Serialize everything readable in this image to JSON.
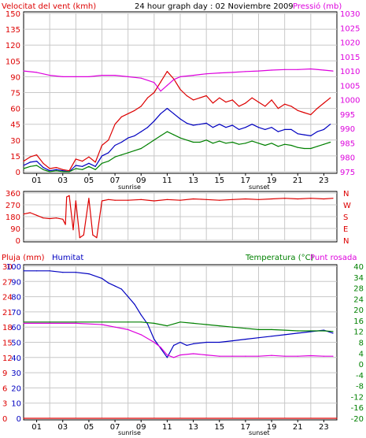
{
  "header": {
    "left_title": "Velocitat del vent (kmh)",
    "center_title": "24 hour graph day : 02 Noviembre 2009",
    "right_title": "Pressió (mb)"
  },
  "colors": {
    "wind": "#dd0000",
    "avg_wind": "#0000c0",
    "low_wind": "#008000",
    "pressure": "#dd00dd",
    "direction": "#dd0000",
    "rain": "#dd0000",
    "humidity": "#0000c0",
    "temperature": "#008000",
    "dewpoint": "#dd00dd",
    "grid": "#c8c8c8",
    "frame": "#000000"
  },
  "time_axis": {
    "ticks": [
      "01",
      "03",
      "05",
      "07",
      "09",
      "11",
      "13",
      "15",
      "17",
      "19",
      "21",
      "23"
    ],
    "sunrise_label": "sunrise",
    "sunset_label": "sunset"
  },
  "chart_data": [
    {
      "type": "line",
      "title": "Velocitat del vent (kmh)",
      "ylabel": "Velocitat del vent (kmh)",
      "ylabel_right": "Pressió (mb)",
      "ylim": [
        0,
        150
      ],
      "ylim_right": [
        975,
        1030
      ],
      "yticks": [
        "0",
        "15",
        "30",
        "45",
        "60",
        "75",
        "90",
        "105",
        "120",
        "135",
        "150"
      ],
      "yticks_right": [
        "975",
        "980",
        "985",
        "990",
        "995",
        "1000",
        "1005",
        "1010",
        "1015",
        "1020",
        "1025",
        "1030"
      ],
      "x_unit": "hour",
      "series": [
        {
          "key": "gust",
          "axis": "left",
          "x": [
            0,
            0.5,
            1,
            1.5,
            2,
            2.5,
            3,
            3.5,
            4,
            4.5,
            5,
            5.5,
            6,
            6.5,
            7,
            7.5,
            8,
            8.5,
            9,
            9.5,
            10,
            10.5,
            11,
            11.5,
            12,
            12.5,
            13,
            13.5,
            14,
            14.5,
            15,
            15.5,
            16,
            16.5,
            17,
            17.5,
            18,
            18.5,
            19,
            19.5,
            20,
            20.5,
            21,
            21.5,
            22,
            22.5,
            23,
            23.5
          ],
          "values": [
            10,
            14,
            16,
            8,
            3,
            4,
            2,
            1,
            12,
            10,
            14,
            9,
            25,
            30,
            45,
            52,
            55,
            58,
            62,
            70,
            75,
            85,
            95,
            88,
            78,
            72,
            68,
            70,
            72,
            65,
            70,
            66,
            68,
            62,
            65,
            70,
            66,
            62,
            68,
            60,
            64,
            62,
            58,
            56,
            54,
            60,
            65,
            70
          ]
        },
        {
          "key": "average",
          "axis": "left",
          "x": [
            0,
            0.5,
            1,
            1.5,
            2,
            2.5,
            3,
            3.5,
            4,
            4.5,
            5,
            5.5,
            6,
            6.5,
            7,
            7.5,
            8,
            8.5,
            9,
            9.5,
            10,
            10.5,
            11,
            11.5,
            12,
            12.5,
            13,
            13.5,
            14,
            14.5,
            15,
            15.5,
            16,
            16.5,
            17,
            17.5,
            18,
            18.5,
            19,
            19.5,
            20,
            20.5,
            21,
            21.5,
            22,
            22.5,
            23,
            23.5
          ],
          "values": [
            6,
            9,
            10,
            4,
            1,
            2,
            1,
            0,
            6,
            5,
            8,
            5,
            15,
            18,
            25,
            28,
            32,
            34,
            38,
            42,
            48,
            55,
            60,
            55,
            50,
            46,
            44,
            45,
            46,
            42,
            45,
            42,
            44,
            40,
            42,
            45,
            42,
            40,
            42,
            38,
            40,
            40,
            36,
            35,
            34,
            38,
            40,
            45
          ]
        },
        {
          "key": "low",
          "axis": "left",
          "x": [
            0,
            0.5,
            1,
            1.5,
            2,
            2.5,
            3,
            3.5,
            4,
            4.5,
            5,
            5.5,
            6,
            6.5,
            7,
            7.5,
            8,
            8.5,
            9,
            9.5,
            10,
            10.5,
            11,
            11.5,
            12,
            12.5,
            13,
            13.5,
            14,
            14.5,
            15,
            15.5,
            16,
            16.5,
            17,
            17.5,
            18,
            18.5,
            19,
            19.5,
            20,
            20.5,
            21,
            21.5,
            22,
            22.5,
            23,
            23.5
          ],
          "values": [
            3,
            5,
            6,
            2,
            0,
            1,
            0,
            0,
            3,
            2,
            5,
            2,
            8,
            10,
            14,
            16,
            18,
            20,
            22,
            26,
            30,
            34,
            38,
            35,
            32,
            30,
            28,
            28,
            30,
            27,
            29,
            27,
            28,
            26,
            27,
            29,
            27,
            25,
            27,
            24,
            26,
            25,
            23,
            22,
            22,
            24,
            26,
            28
          ]
        },
        {
          "key": "pressure",
          "axis": "right",
          "x": [
            0,
            1,
            2,
            3,
            4,
            5,
            6,
            7,
            8,
            9,
            10,
            10.5,
            11,
            11.5,
            12,
            13,
            14,
            15,
            16,
            17,
            18,
            19,
            20,
            21,
            22,
            23,
            23.7
          ],
          "values": [
            1010,
            1009.5,
            1008.5,
            1008,
            1008,
            1008,
            1008.5,
            1008.5,
            1008,
            1007.5,
            1006,
            1003,
            1005,
            1007,
            1008,
            1008.5,
            1009,
            1009.3,
            1009.5,
            1009.8,
            1010,
            1010.3,
            1010.5,
            1010.5,
            1010.7,
            1010.3,
            1010
          ]
        }
      ]
    },
    {
      "type": "line",
      "title": "",
      "ylim": [
        0,
        360
      ],
      "yticks": [
        "0",
        "90",
        "180",
        "270",
        "360"
      ],
      "yticks_right": [
        "N",
        "E",
        "S",
        "W",
        "N"
      ],
      "series": [
        {
          "key": "direction",
          "axis": "left",
          "x": [
            0,
            0.5,
            1,
            1.5,
            2,
            2.5,
            3,
            3.2,
            3.3,
            3.5,
            3.8,
            4,
            4.3,
            4.6,
            5,
            5.3,
            5.6,
            6,
            6.5,
            7,
            8,
            9,
            10,
            11,
            12,
            13,
            14,
            15,
            16,
            17,
            18,
            19,
            20,
            21,
            22,
            23,
            23.7
          ],
          "values": [
            200,
            210,
            190,
            170,
            165,
            170,
            160,
            120,
            330,
            340,
            80,
            300,
            20,
            40,
            320,
            40,
            20,
            300,
            310,
            305,
            305,
            310,
            300,
            310,
            305,
            315,
            310,
            305,
            310,
            315,
            310,
            315,
            320,
            315,
            320,
            315,
            320
          ]
        }
      ]
    },
    {
      "type": "line",
      "title": "",
      "ylabel": "Pluja (mm)",
      "ylabel_2": "Humitat",
      "ylabel_right": "Temperatura (°C)Punt rosada",
      "ylim_humidity": [
        0,
        100
      ],
      "ylim_rain": [
        0,
        30
      ],
      "ylim_temp": [
        -20,
        40
      ],
      "yticks_humidity": [
        "0",
        "10",
        "20",
        "30",
        "40",
        "50",
        "60",
        "70",
        "80",
        "90",
        "100"
      ],
      "yticks_rain": [
        "0",
        "3",
        "6",
        "9",
        "12",
        "15",
        "18",
        "21",
        "24",
        "27",
        "30"
      ],
      "yticks_right": [
        "-20",
        "-16",
        "-12",
        "-8",
        "-4",
        "0",
        "4",
        "8",
        "12",
        "16",
        "20",
        "24",
        "28",
        "34",
        "40"
      ],
      "series": [
        {
          "key": "rain",
          "axis": "rain",
          "x": [
            0,
            24
          ],
          "values": [
            0,
            0
          ]
        },
        {
          "key": "humidity",
          "axis": "humidity",
          "x": [
            0,
            1,
            2,
            3,
            4,
            5,
            6,
            6.5,
            7,
            7.5,
            8,
            8.5,
            9,
            9.5,
            10,
            10.5,
            11,
            11.5,
            12,
            12.5,
            13,
            14,
            15,
            16,
            17,
            18,
            19,
            20,
            21,
            22,
            23,
            23.7
          ],
          "values": [
            97,
            97,
            97,
            96,
            96,
            95,
            92,
            89,
            87,
            85,
            80,
            75,
            68,
            62,
            52,
            46,
            40,
            48,
            50,
            48,
            49,
            50,
            50,
            51,
            52,
            53,
            54,
            55,
            56,
            57,
            58,
            56
          ]
        },
        {
          "key": "temperature",
          "axis": "temp",
          "x": [
            0,
            2,
            4,
            6,
            8,
            9,
            10,
            11,
            12,
            13,
            14,
            15,
            16,
            17,
            18,
            19,
            20,
            21,
            22,
            23,
            23.7
          ],
          "values": [
            18,
            18,
            18,
            18,
            18,
            18,
            17.5,
            16.5,
            18,
            17.5,
            17,
            16.5,
            16,
            15.5,
            15,
            15,
            14.8,
            14.5,
            14.5,
            14.5,
            14.3
          ]
        },
        {
          "key": "dewpoint",
          "axis": "temp",
          "x": [
            0,
            2,
            4,
            6,
            7,
            8,
            9,
            10,
            10.5,
            11,
            11.5,
            12,
            13,
            14,
            15,
            16,
            17,
            18,
            19,
            20,
            21,
            22,
            23,
            23.7
          ],
          "values": [
            17.5,
            17.5,
            17.5,
            17,
            16,
            15,
            13,
            10,
            8,
            5,
            4,
            5,
            5.5,
            5,
            4.5,
            4.5,
            4.5,
            4.5,
            4.8,
            4.5,
            4.5,
            4.7,
            4.5,
            4.5
          ]
        }
      ]
    }
  ],
  "bottom_titles": {
    "rain_label": "Pluja (mm)",
    "humidity_label": "Humitat",
    "temp_label": "Temperatura (°C)",
    "dew_label": "Punt rosada"
  }
}
